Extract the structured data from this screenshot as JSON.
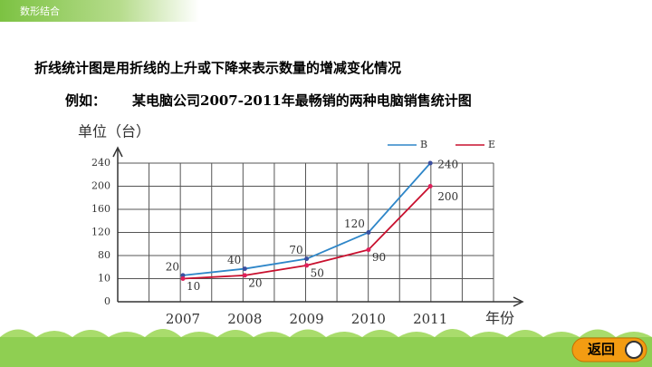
{
  "header": {
    "tag": "数形结合"
  },
  "intro": "折线统计图是用折线的上升或下降来表示数量的增减变化情况",
  "example": {
    "prefix": "例如：",
    "title": "某电脑公司2007-2011年最畅销的两种电脑销售统计图"
  },
  "button": "返回",
  "chart_data": {
    "type": "line",
    "ylabel": "单位（台）",
    "xlabel": "年份",
    "categories": [
      "2007",
      "2008",
      "2009",
      "2010",
      "2011"
    ],
    "series": [
      {
        "name": "B",
        "color": "#2e86c8",
        "values": [
          20,
          40,
          70,
          120,
          240
        ]
      },
      {
        "name": "E",
        "color": "#c8102e",
        "values": [
          10,
          20,
          50,
          90,
          200
        ]
      }
    ],
    "ylim": [
      0,
      240
    ],
    "yticks": [
      0,
      10,
      80,
      120,
      160,
      200,
      240
    ],
    "grid": true
  }
}
